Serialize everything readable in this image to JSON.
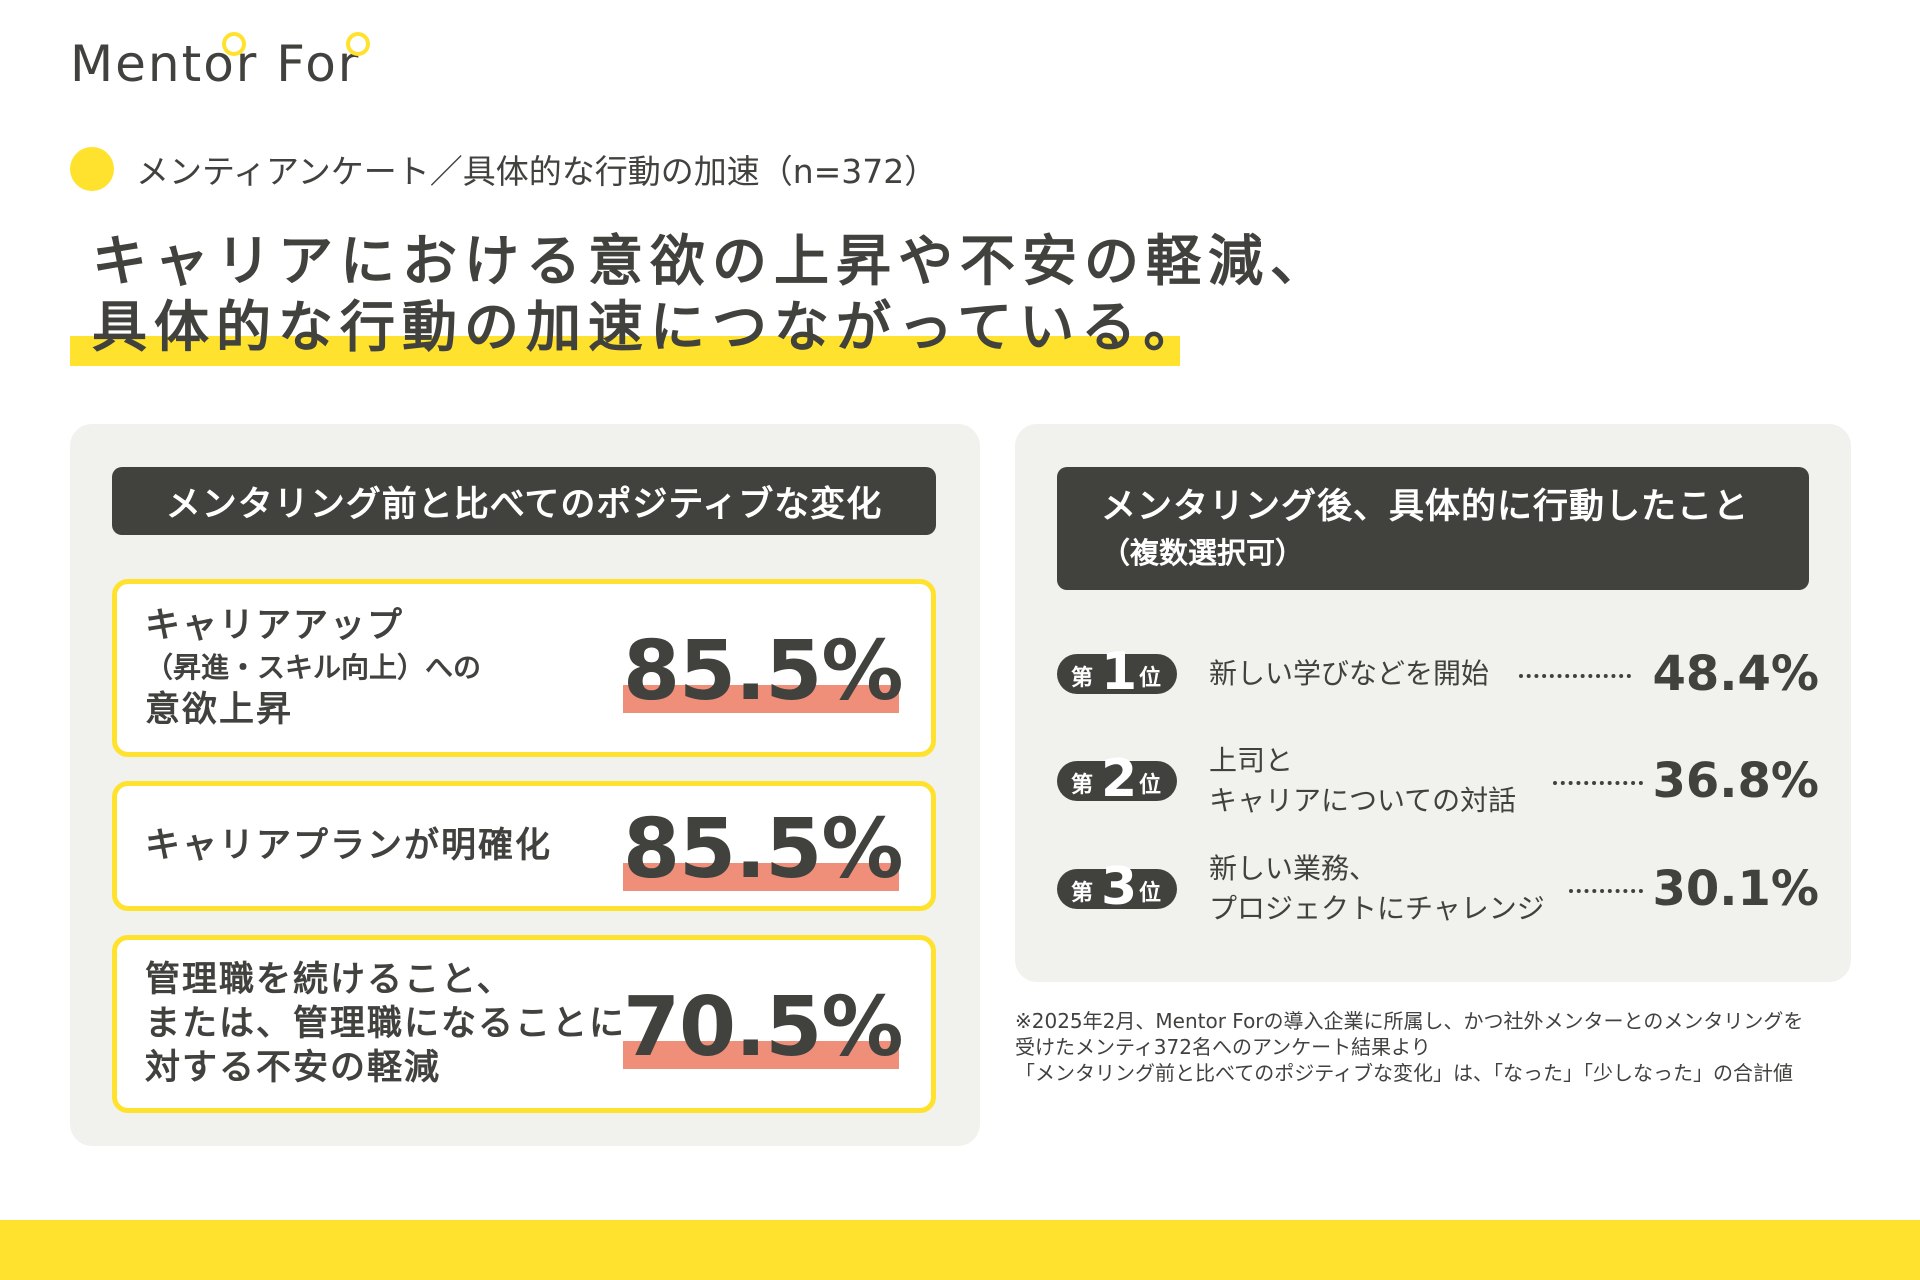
{
  "logo": {
    "text": "Mentor For"
  },
  "subtitle": "メンティアンケート／具体的な行動の加速（n=372）",
  "headline": {
    "line1": "キャリアにおける意欲の上昇や不安の軽減、",
    "line2": "具体的な行動の加速につながっている。"
  },
  "left_panel": {
    "header": "メンタリング前と比べてのポジティブな変化",
    "cards": [
      {
        "lines": [
          "キャリアアップ",
          "（昇進・スキル向上）への",
          "意欲上昇"
        ],
        "value": "85.5%"
      },
      {
        "lines": [
          "キャリアプランが明確化"
        ],
        "value": "85.5%"
      },
      {
        "lines": [
          "管理職を続けること、",
          "または、管理職になることに",
          "対する不安の軽減"
        ],
        "value": "70.5%"
      }
    ]
  },
  "right_panel": {
    "header_line1": "メンタリング後、具体的に行動したこと",
    "header_line2": "（複数選択可）",
    "rank_prefix": "第",
    "rank_suffix": "位",
    "ranks": [
      {
        "rank": "1",
        "lines": [
          "新しい学びなどを開始"
        ],
        "value": "48.4%"
      },
      {
        "rank": "2",
        "lines": [
          "上司と",
          "キャリアについての対話"
        ],
        "value": "36.8%"
      },
      {
        "rank": "3",
        "lines": [
          "新しい業務、",
          "プロジェクトにチャレンジ"
        ],
        "value": "30.1%"
      }
    ]
  },
  "footnote": {
    "line1": "※2025年2月、Mentor Forの導入企業に所属し、かつ社外メンターとのメンタリングを",
    "line2": "受けたメンティ372名へのアンケート結果より",
    "line3": "「メンタリング前と比べてのポジティブな変化」は、「なった」「少しなった」の合計値"
  },
  "colors": {
    "accent": "#ffe22e",
    "dark": "#41423e",
    "highlight": "#ef8f7a",
    "panel": "#f1f1ed"
  }
}
